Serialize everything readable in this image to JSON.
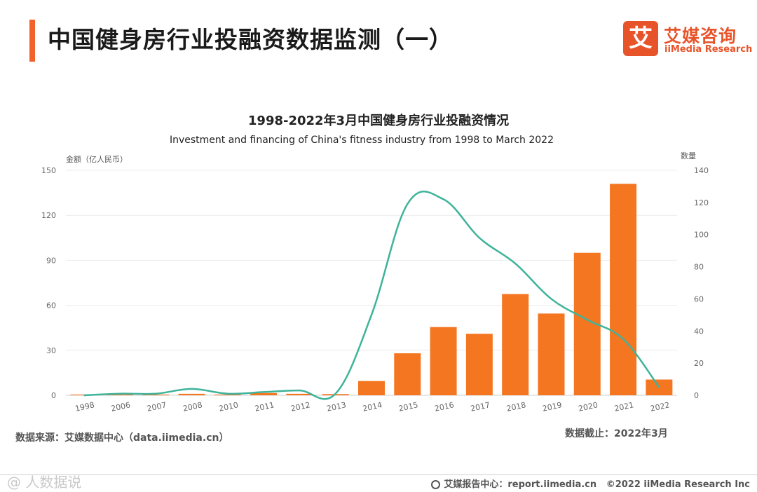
{
  "header": {
    "title": "中国健身房行业投融资数据监测（一）",
    "logo_mark": "艾",
    "logo_cn": "艾媒咨询",
    "logo_en": "iiMedia Research"
  },
  "colors": {
    "accent": "#f2632b",
    "bar": "#f47621",
    "line": "#3fb39a"
  },
  "chart_data": {
    "type": "bar+line",
    "title": "1998-2022年3月中国健身房行业投融资情况",
    "subtitle": "Investment and financing of China's fitness industry from 1998 to March 2022",
    "categories": [
      "1998",
      "2006",
      "2007",
      "2008",
      "2010",
      "2011",
      "2012",
      "2013",
      "2014",
      "2015",
      "2016",
      "2017",
      "2018",
      "2019",
      "2020",
      "2021",
      "2022"
    ],
    "series": [
      {
        "name": "金额（亿人民币）",
        "type": "bar",
        "axis": "left",
        "values": [
          0.5,
          0.5,
          0.5,
          1,
          0.5,
          1.5,
          1,
          0.8,
          9.5,
          28,
          45.5,
          41,
          67.5,
          54.5,
          95,
          141,
          10.5
        ]
      },
      {
        "name": "数量",
        "type": "line",
        "axis": "right",
        "values": [
          0,
          1,
          1,
          4,
          1,
          2,
          3,
          1,
          50,
          119,
          122,
          98,
          82,
          60,
          47,
          35,
          5
        ]
      }
    ],
    "ylabel_left": "金额（亿人民币）",
    "ylabel_right": "数量",
    "ylim_left": [
      0,
      150
    ],
    "yticks_left": [
      0,
      30,
      60,
      90,
      120,
      150
    ],
    "ylim_right": [
      0,
      140
    ],
    "yticks_right": [
      0,
      20,
      40,
      60,
      80,
      100,
      120,
      140
    ],
    "grid": true
  },
  "notes": {
    "source": "数据来源：艾媒数据中心（data.iimedia.cn）",
    "cutoff": "数据截止：2022年3月"
  },
  "footer": {
    "watermark": "@ 人数据说",
    "report_center": "艾媒报告中心：report.iimedia.cn",
    "copyright": "©2022  iiMedia Research  Inc"
  }
}
